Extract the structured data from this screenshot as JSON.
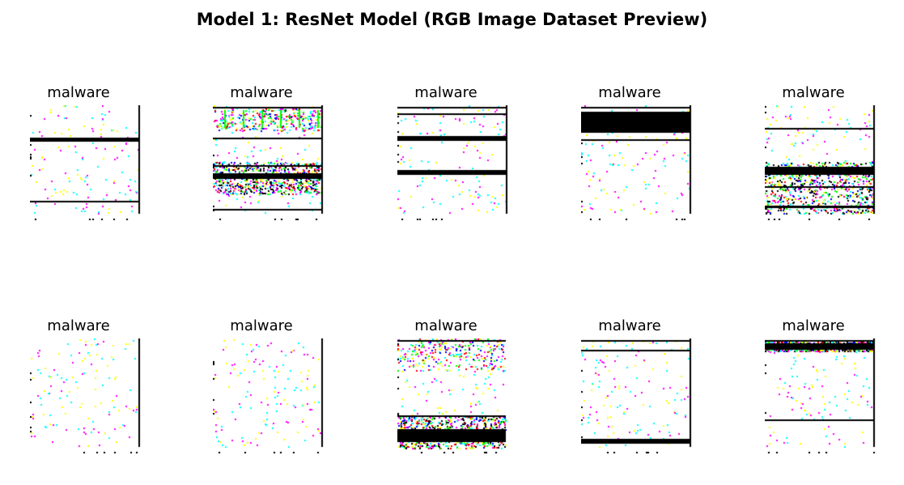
{
  "title": "Model 1: ResNet Model (RGB Image Dataset Preview)",
  "tiles": [
    {
      "label": "malware"
    },
    {
      "label": "malware"
    },
    {
      "label": "malware"
    },
    {
      "label": "malware"
    },
    {
      "label": "malware"
    },
    {
      "label": "malware"
    },
    {
      "label": "malware"
    },
    {
      "label": "malware"
    },
    {
      "label": "malware"
    },
    {
      "label": "malware"
    }
  ],
  "palette": [
    "#ff00ff",
    "#00ffff",
    "#ffff00",
    "#0000ff",
    "#00ff00",
    "#ff0000"
  ]
}
